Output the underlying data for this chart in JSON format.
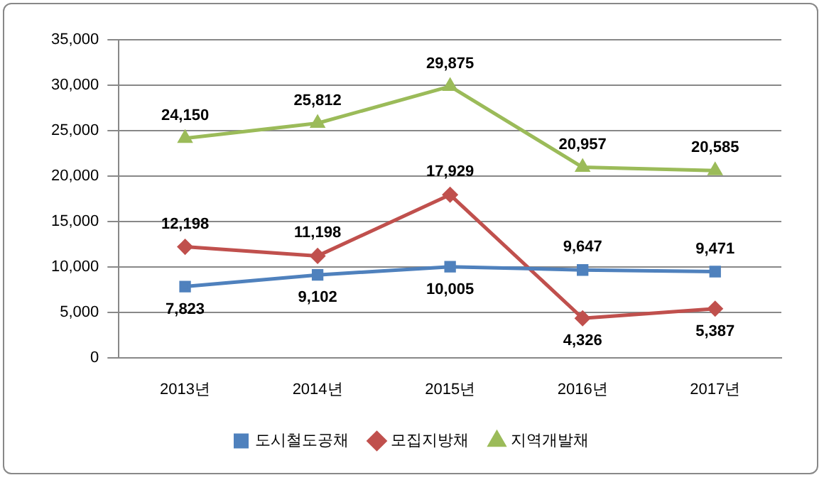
{
  "chart_data": {
    "type": "line",
    "categories": [
      "2013년",
      "2014년",
      "2015년",
      "2016년",
      "2017년"
    ],
    "series": [
      {
        "name": "도시철도공채",
        "color": "#4f81bd",
        "marker": "square",
        "values": [
          7823,
          9102,
          10005,
          9647,
          9471
        ],
        "value_labels": [
          "7,823",
          "9,102",
          "10,005",
          "9,647",
          "9,471"
        ]
      },
      {
        "name": "모집지방채",
        "color": "#c0504d",
        "marker": "diamond",
        "values": [
          12198,
          11198,
          17929,
          4326,
          5387
        ],
        "value_labels": [
          "12,198",
          "11,198",
          "17,929",
          "4,326",
          "5,387"
        ]
      },
      {
        "name": "지역개발채",
        "color": "#9bbb59",
        "marker": "triangle",
        "values": [
          24150,
          25812,
          29875,
          20957,
          20585
        ],
        "value_labels": [
          "24,150",
          "25,812",
          "29,875",
          "20,957",
          "20,585"
        ]
      }
    ],
    "ylim": [
      0,
      35000
    ],
    "yticks": [
      0,
      {
        "value": 5000,
        "label": "5,000"
      },
      {
        "value": 10000,
        "label": "10,000"
      },
      {
        "value": 15000,
        "label": "15,000"
      },
      {
        "value": 20000,
        "label": "20,000"
      },
      {
        "value": 25000,
        "label": "25,000"
      },
      {
        "value": 30000,
        "label": "30,000"
      },
      {
        "value": 35000,
        "label": "35,000"
      }
    ],
    "grid": "y",
    "legend": "bottom"
  }
}
